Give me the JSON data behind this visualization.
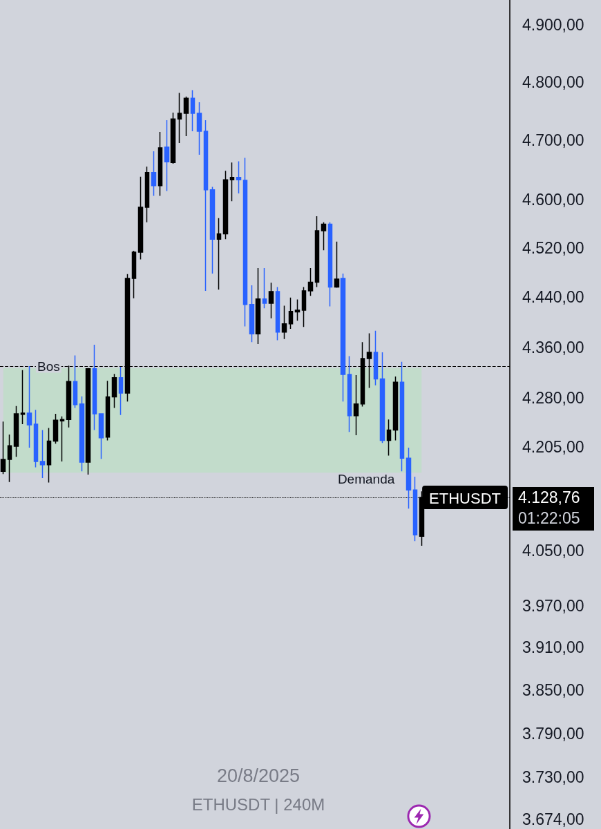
{
  "chart_data": {
    "type": "candlestick",
    "title": "20/8/2025",
    "subtitle": "ETHUSDT | 240M",
    "categories": [
      null,
      null,
      null,
      null,
      null,
      null,
      null,
      null,
      null,
      null,
      null,
      null,
      null,
      null,
      null,
      null,
      null,
      null,
      null,
      null,
      null,
      null,
      null,
      null,
      null,
      null,
      null,
      null,
      null,
      null,
      null,
      null,
      null,
      null,
      null,
      null,
      null,
      null,
      null,
      null,
      null,
      null,
      null,
      null,
      null,
      null,
      null,
      null,
      null,
      null,
      null,
      null,
      null,
      null,
      null,
      null,
      null,
      null,
      null,
      null,
      null,
      null,
      null,
      null,
      null,
      null,
      null,
      null,
      null,
      null,
      null,
      null,
      null,
      null,
      null,
      null,
      null,
      null
    ],
    "ohlc": [
      [
        4168,
        4244,
        4164,
        4186
      ],
      [
        4186,
        4224,
        4152,
        4207
      ],
      [
        4206,
        4268,
        4190,
        4256
      ],
      [
        4255,
        4324,
        4240,
        4257
      ],
      [
        4257,
        4330,
        4204,
        4239
      ],
      [
        4240,
        4262,
        4174,
        4183
      ],
      [
        4183,
        4231,
        4158,
        4178
      ],
      [
        4178,
        4234,
        4151,
        4214
      ],
      [
        4214,
        4256,
        4210,
        4246
      ],
      [
        4245,
        4252,
        4183,
        4247
      ],
      [
        4247,
        4331,
        4235,
        4306
      ],
      [
        4306,
        4347,
        4265,
        4270
      ],
      [
        4271,
        4283,
        4168,
        4182
      ],
      [
        4182,
        4327,
        4163,
        4326
      ],
      [
        4326,
        4364,
        4231,
        4256
      ],
      [
        4256,
        4256,
        4187,
        4219
      ],
      [
        4220,
        4307,
        4215,
        4282
      ],
      [
        4282,
        4318,
        4265,
        4312
      ],
      [
        4312,
        4329,
        4254,
        4288
      ],
      [
        4288,
        4477,
        4275,
        4470
      ],
      [
        4470,
        4515,
        4438,
        4513
      ],
      [
        4513,
        4638,
        4501,
        4587
      ],
      [
        4587,
        4655,
        4562,
        4645
      ],
      [
        4645,
        4681,
        4606,
        4623
      ],
      [
        4623,
        4714,
        4606,
        4687
      ],
      [
        4688,
        4734,
        4614,
        4663
      ],
      [
        4662,
        4747,
        4660,
        4736
      ],
      [
        4736,
        4781,
        4695,
        4746
      ],
      [
        4746,
        4775,
        4707,
        4772
      ],
      [
        4772,
        4786,
        4715,
        4746
      ],
      [
        4746,
        4765,
        4675,
        4715
      ],
      [
        4715,
        4734,
        4450,
        4616
      ],
      [
        4616,
        4621,
        4478,
        4534
      ],
      [
        4534,
        4569,
        4452,
        4543
      ],
      [
        4543,
        4648,
        4534,
        4633
      ],
      [
        4633,
        4662,
        4597,
        4637
      ],
      [
        4637,
        4664,
        4610,
        4633
      ],
      [
        4632,
        4670,
        4393,
        4428
      ],
      [
        4428,
        4459,
        4368,
        4381
      ],
      [
        4381,
        4487,
        4365,
        4437
      ],
      [
        4437,
        4487,
        4422,
        4430
      ],
      [
        4430,
        4463,
        4406,
        4449
      ],
      [
        4449,
        4456,
        4371,
        4384
      ],
      [
        4384,
        4426,
        4373,
        4397
      ],
      [
        4397,
        4439,
        4389,
        4417
      ],
      [
        4416,
        4436,
        4402,
        4419
      ],
      [
        4419,
        4456,
        4392,
        4450
      ],
      [
        4450,
        4487,
        4442,
        4464
      ],
      [
        4464,
        4572,
        4456,
        4548
      ],
      [
        4548,
        4562,
        4516,
        4559
      ],
      [
        4559,
        4562,
        4425,
        4456
      ],
      [
        4456,
        4530,
        4455,
        4469
      ],
      [
        4470,
        4478,
        4275,
        4317
      ],
      [
        4317,
        4346,
        4228,
        4253
      ],
      [
        4253,
        4316,
        4223,
        4271
      ],
      [
        4271,
        4368,
        4267,
        4342
      ],
      [
        4342,
        4382,
        4296,
        4352
      ],
      [
        4352,
        4386,
        4300,
        4310
      ],
      [
        4310,
        4352,
        4211,
        4215
      ],
      [
        4215,
        4247,
        4192,
        4231
      ],
      [
        4231,
        4314,
        4215,
        4305
      ],
      [
        4305,
        4337,
        4168,
        4188
      ],
      [
        4188,
        4204,
        4112,
        4140
      ],
      [
        4140,
        4160,
        4064,
        4073
      ],
      [
        4071,
        4138,
        4057,
        4128.76
      ],
      null,
      null,
      null,
      null,
      null,
      null,
      null,
      null,
      null,
      null,
      null,
      null,
      null
    ],
    "colors": [
      "#000000",
      "#000000",
      "#000000",
      "#000000",
      "#2962ff",
      "#2962ff",
      "#2962ff",
      "#000000",
      "#000000",
      "#000000",
      "#000000",
      "#2962ff",
      "#2962ff",
      "#000000",
      "#2962ff",
      "#2962ff",
      "#000000",
      "#000000",
      "#2962ff",
      "#000000",
      "#000000",
      "#000000",
      "#000000",
      "#2962ff",
      "#000000",
      "#2962ff",
      "#000000",
      "#000000",
      "#000000",
      "#2962ff",
      "#2962ff",
      "#2962ff",
      "#2962ff",
      "#000000",
      "#000000",
      "#000000",
      "#2962ff",
      "#2962ff",
      "#2962ff",
      "#000000",
      "#2962ff",
      "#000000",
      "#2962ff",
      "#000000",
      "#000000",
      "#000000",
      "#000000",
      "#000000",
      "#000000",
      "#000000",
      "#2962ff",
      "#000000",
      "#2962ff",
      "#2962ff",
      "#000000",
      "#000000",
      "#000000",
      "#2962ff",
      "#2962ff",
      "#000000",
      "#000000",
      "#2962ff",
      "#2962ff",
      "#2962ff",
      "#000000",
      null,
      null,
      null,
      null,
      null,
      null,
      null,
      null,
      null,
      null,
      null,
      null,
      null
    ],
    "ylim": [
      3661,
      4945
    ],
    "log": true,
    "yticks": [
      {
        "value": 4900,
        "label": "4.900,00"
      },
      {
        "value": 4800,
        "label": "4.800,00"
      },
      {
        "value": 4700,
        "label": "4.700,00"
      },
      {
        "value": 4600,
        "label": "4.600,00"
      },
      {
        "value": 4520,
        "label": "4.520,00"
      },
      {
        "value": 4440,
        "label": "4.440,00"
      },
      {
        "value": 4360,
        "label": "4.360,00"
      },
      {
        "value": 4280,
        "label": "4.280,00"
      },
      {
        "value": 4205,
        "label": "4.205,00"
      },
      {
        "value": 4050,
        "label": "4.050,00"
      },
      {
        "value": 3970,
        "label": "3.970,00"
      },
      {
        "value": 3910,
        "label": "3.910,00"
      },
      {
        "value": 3850,
        "label": "3.850,00"
      },
      {
        "value": 3790,
        "label": "3.790,00"
      },
      {
        "value": 3730,
        "label": "3.730,00"
      },
      {
        "value": 3674,
        "label": "3.674,00"
      }
    ],
    "tick_labels": "y",
    "ref_lines": [
      {
        "axis": "y",
        "value": 4330,
        "label": "Bos",
        "line_style": "dashed",
        "color": "#000000"
      },
      {
        "axis": "y",
        "value": 4128.76,
        "label": "4.128,76",
        "line_style": "dotted",
        "color": "#000000"
      }
    ],
    "bands": [
      {
        "axis": "y",
        "from": 4166,
        "to": 4327,
        "label": "Demanda",
        "color": "#c2dccb"
      }
    ],
    "annotations": [
      {
        "text": "ETHUSDT",
        "y": 4128.76
      },
      "01:22:05"
    ]
  }
}
